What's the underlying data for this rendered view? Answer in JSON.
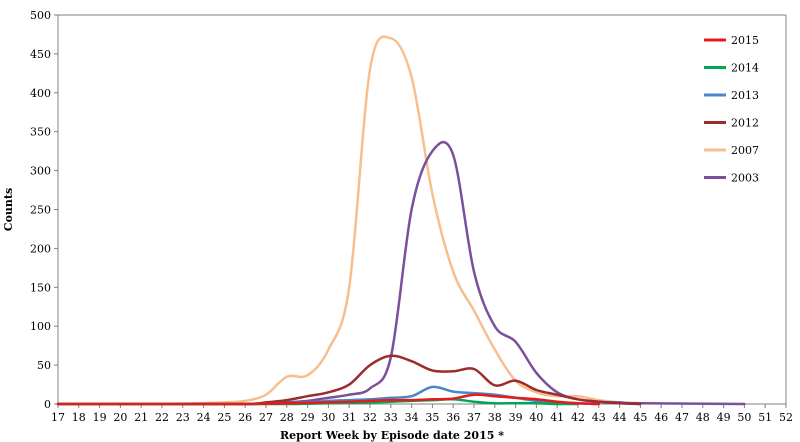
{
  "chart_data": {
    "type": "line",
    "xlabel": "Report Week by Episode date 2015 *",
    "ylabel": "Counts",
    "xlim": [
      17,
      52
    ],
    "ylim": [
      0,
      500
    ],
    "y_ticks": [
      0,
      50,
      100,
      150,
      200,
      250,
      300,
      350,
      400,
      450,
      500
    ],
    "x_ticks": [
      17,
      18,
      19,
      20,
      21,
      22,
      23,
      24,
      25,
      26,
      27,
      28,
      29,
      30,
      31,
      32,
      33,
      34,
      35,
      36,
      37,
      38,
      39,
      40,
      41,
      42,
      43,
      44,
      45,
      46,
      47,
      48,
      49,
      50,
      51,
      52
    ],
    "grid": false,
    "legend_position": "top-right",
    "series": [
      {
        "name": "2015",
        "color": "#e41a1c",
        "x": [
          17,
          22,
          26,
          28,
          30,
          31,
          32,
          33,
          34,
          35,
          36,
          37,
          38,
          39,
          40,
          41,
          42,
          43
        ],
        "values": [
          0,
          0,
          0,
          1,
          2,
          3,
          4,
          5,
          5,
          6,
          7,
          12,
          10,
          8,
          6,
          3,
          1,
          0
        ]
      },
      {
        "name": "2014",
        "color": "#00a651",
        "x": [
          17,
          22,
          26,
          28,
          30,
          32,
          33,
          34,
          35,
          36,
          37,
          38,
          39,
          40,
          41,
          42
        ],
        "values": [
          0,
          0,
          0,
          0,
          1,
          2,
          3,
          4,
          5,
          6,
          3,
          1,
          1,
          1,
          0,
          0
        ]
      },
      {
        "name": "2013",
        "color": "#4a86c8",
        "x": [
          17,
          22,
          26,
          28,
          29,
          30,
          31,
          32,
          33,
          34,
          35,
          36,
          37,
          38,
          39,
          40,
          41,
          42,
          43
        ],
        "values": [
          0,
          0,
          0,
          1,
          2,
          4,
          5,
          6,
          8,
          10,
          22,
          16,
          14,
          12,
          8,
          4,
          2,
          1,
          0
        ]
      },
      {
        "name": "2012",
        "color": "#9b2c2c",
        "x": [
          17,
          22,
          26,
          27,
          28,
          29,
          30,
          31,
          32,
          33,
          34,
          35,
          36,
          37,
          38,
          39,
          40,
          41,
          42,
          43,
          44,
          45
        ],
        "values": [
          0,
          0,
          0,
          2,
          5,
          10,
          15,
          25,
          50,
          62,
          55,
          43,
          42,
          45,
          24,
          30,
          18,
          12,
          6,
          3,
          1,
          0
        ]
      },
      {
        "name": "2007",
        "color": "#f7bf8e",
        "x": [
          17,
          22,
          25,
          26,
          27,
          28,
          29,
          30,
          31,
          32,
          33,
          34,
          35,
          36,
          37,
          38,
          39,
          40,
          41,
          42,
          43,
          44,
          45
        ],
        "values": [
          0,
          0,
          2,
          4,
          12,
          35,
          37,
          70,
          150,
          430,
          470,
          420,
          270,
          170,
          120,
          70,
          30,
          15,
          10,
          10,
          5,
          2,
          0
        ]
      },
      {
        "name": "2003",
        "color": "#7a4f9b",
        "x": [
          17,
          22,
          26,
          28,
          29,
          30,
          31,
          32,
          33,
          34,
          35,
          36,
          37,
          38,
          39,
          40,
          41,
          42,
          43,
          44,
          45,
          50
        ],
        "values": [
          0,
          0,
          0,
          2,
          4,
          8,
          12,
          20,
          60,
          250,
          325,
          320,
          170,
          100,
          80,
          40,
          15,
          6,
          3,
          2,
          1,
          0
        ]
      }
    ]
  }
}
